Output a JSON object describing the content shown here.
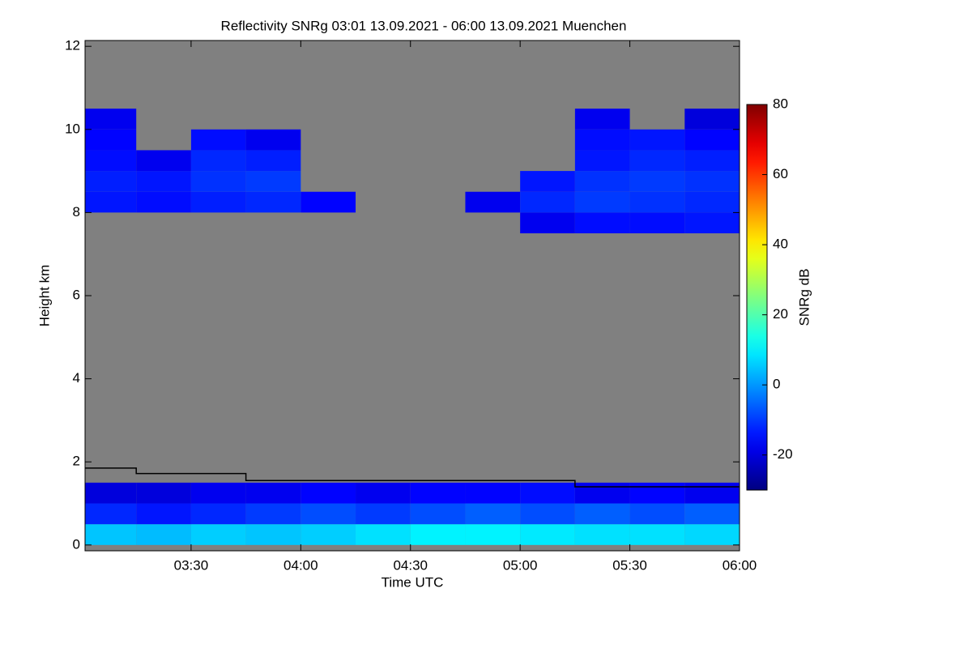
{
  "chart_data": {
    "type": "heatmap",
    "title": "Reflectivity SNRg   03:01 13.09.2021 - 06:00 13.09.2021 Muenchen",
    "x_label": "Time UTC",
    "y_label": "Height km",
    "colorbar_label": "SNRg dB",
    "colormap": "jet",
    "nodata_color": "#808080",
    "xlim": [
      181,
      360
    ],
    "xticks": [
      {
        "value": 210,
        "label": "03:30"
      },
      {
        "value": 240,
        "label": "04:00"
      },
      {
        "value": 270,
        "label": "04:30"
      },
      {
        "value": 300,
        "label": "05:00"
      },
      {
        "value": 330,
        "label": "05:30"
      },
      {
        "value": 360,
        "label": "06:00"
      }
    ],
    "ylim": [
      -0.14,
      12.14
    ],
    "yticks": [
      0,
      2,
      4,
      6,
      8,
      10,
      12
    ],
    "clim": [
      -30,
      80
    ],
    "cticks": [
      -20,
      0,
      20,
      40,
      60,
      80
    ],
    "x_edges": [
      181,
      195,
      210,
      225,
      240,
      255,
      270,
      285,
      300,
      315,
      330,
      345,
      360
    ],
    "y_edges": [
      0,
      0.5,
      1,
      1.5,
      2,
      2.5,
      3,
      3.5,
      4,
      4.5,
      5,
      5.5,
      6,
      6.5,
      7,
      7.5,
      8,
      8.5,
      9,
      9.5,
      10,
      10.5,
      11,
      11.5,
      12
    ],
    "values": [
      [
        5,
        4,
        6,
        5,
        6,
        8,
        10,
        10,
        9,
        8,
        8,
        7
      ],
      [
        -12,
        -14,
        -12,
        -10,
        -8,
        -10,
        -8,
        -6,
        -8,
        -6,
        -8,
        -6
      ],
      [
        -20,
        -20,
        -18,
        -18,
        -16,
        -18,
        -16,
        -16,
        -15,
        -18,
        -16,
        -18
      ],
      [
        null,
        null,
        null,
        null,
        null,
        null,
        null,
        null,
        null,
        null,
        null,
        null
      ],
      [
        null,
        null,
        null,
        null,
        null,
        null,
        null,
        null,
        null,
        null,
        null,
        null
      ],
      [
        null,
        null,
        null,
        null,
        null,
        null,
        null,
        null,
        null,
        null,
        null,
        null
      ],
      [
        null,
        null,
        null,
        null,
        null,
        null,
        null,
        null,
        null,
        null,
        null,
        null
      ],
      [
        null,
        null,
        null,
        null,
        null,
        null,
        null,
        null,
        null,
        null,
        null,
        null
      ],
      [
        null,
        null,
        null,
        null,
        null,
        null,
        null,
        null,
        null,
        null,
        null,
        null
      ],
      [
        null,
        null,
        null,
        null,
        null,
        null,
        null,
        null,
        null,
        null,
        null,
        null
      ],
      [
        null,
        null,
        null,
        null,
        null,
        null,
        null,
        null,
        null,
        null,
        null,
        null
      ],
      [
        null,
        null,
        null,
        null,
        null,
        null,
        null,
        null,
        null,
        null,
        null,
        null
      ],
      [
        null,
        null,
        null,
        null,
        null,
        null,
        null,
        null,
        null,
        null,
        null,
        null
      ],
      [
        null,
        null,
        null,
        null,
        null,
        null,
        null,
        null,
        null,
        null,
        null,
        null
      ],
      [
        null,
        null,
        null,
        null,
        null,
        null,
        null,
        null,
        null,
        null,
        null,
        null
      ],
      [
        null,
        null,
        null,
        null,
        null,
        null,
        null,
        null,
        -18,
        -15,
        -15,
        -14
      ],
      [
        -14,
        -15,
        -13,
        -12,
        -16,
        null,
        null,
        -18,
        -12,
        -10,
        -11,
        -12
      ],
      [
        -13,
        -14,
        -11,
        -10,
        null,
        null,
        null,
        null,
        -14,
        -11,
        -10,
        -11
      ],
      [
        -15,
        -18,
        -12,
        -13,
        null,
        null,
        null,
        null,
        null,
        -14,
        -12,
        -13
      ],
      [
        -16,
        null,
        -15,
        -18,
        null,
        null,
        null,
        null,
        null,
        -15,
        -14,
        -16
      ],
      [
        -18,
        null,
        null,
        null,
        null,
        null,
        null,
        null,
        null,
        -18,
        null,
        -20
      ],
      [
        null,
        null,
        null,
        null,
        null,
        null,
        null,
        null,
        null,
        null,
        null,
        null
      ],
      [
        null,
        null,
        null,
        null,
        null,
        null,
        null,
        null,
        null,
        null,
        null,
        null
      ],
      [
        null,
        null,
        null,
        null,
        null,
        null,
        null,
        null,
        null,
        null,
        null,
        null
      ]
    ],
    "series": [
      {
        "color": "#000000",
        "x": [
          181,
          195,
          195,
          225,
          225,
          315,
          315,
          360
        ],
        "values": [
          1.85,
          1.85,
          1.72,
          1.72,
          1.55,
          1.55,
          1.4,
          1.4
        ]
      }
    ]
  }
}
